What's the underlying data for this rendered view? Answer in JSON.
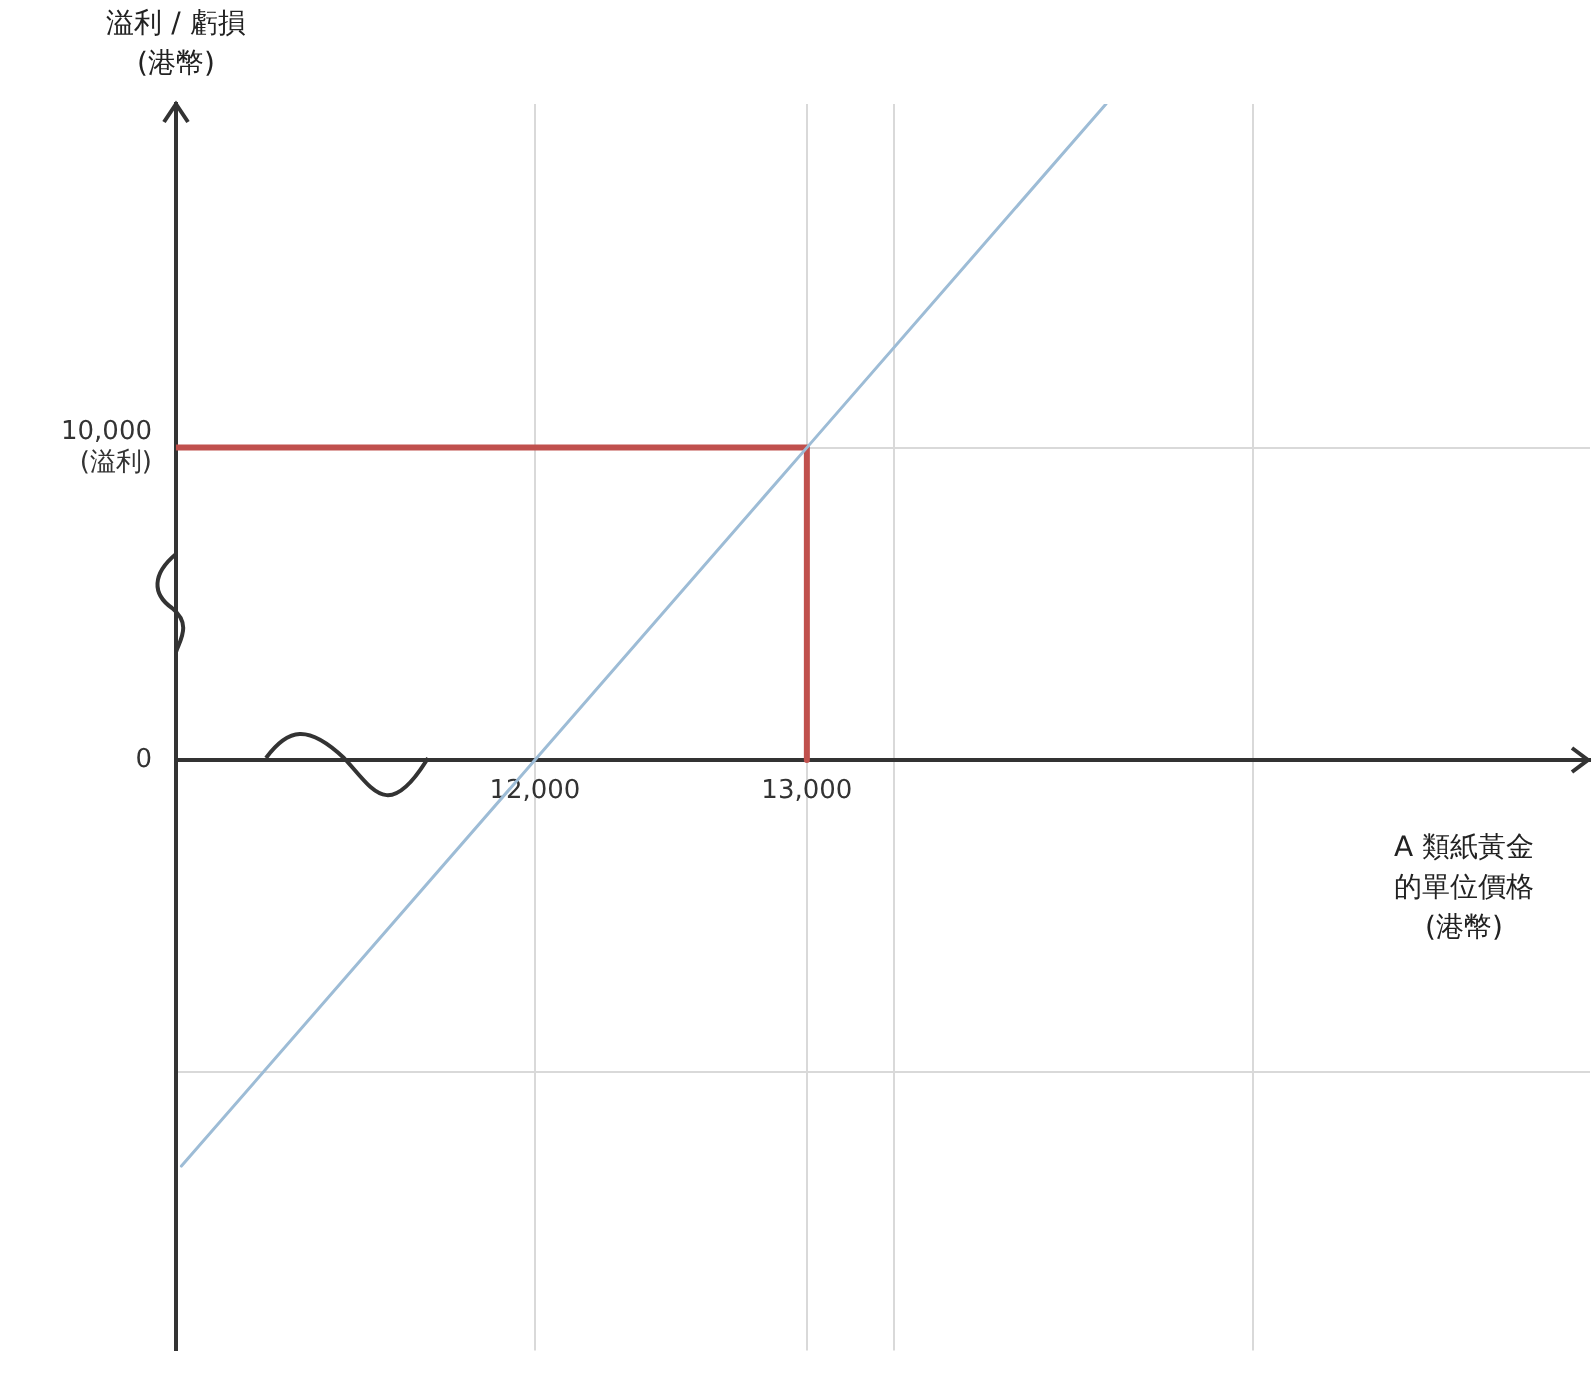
{
  "chart_data": {
    "type": "line",
    "xlabel": "A 類紙黃金的單位價格(港幣)",
    "ylabel": "溢利 / 虧損(港幣)",
    "series": [
      {
        "color": "#9dbcd6",
        "x": [
          10700,
          12000,
          13000,
          14100
        ],
        "values": [
          -13000,
          0,
          10000,
          21000
        ]
      },
      {
        "color": "#c0504d",
        "x": [
          10680,
          13000,
          13000
        ],
        "values": [
          10000,
          10000,
          0
        ]
      }
    ],
    "xlim": [
      10680,
      15880
    ],
    "xticks": [
      {
        "value": 12000,
        "label": "12,000"
      },
      {
        "value": 13000,
        "label": "13,000"
      },
      {
        "value": 13320,
        "label": null
      },
      {
        "value": 14640,
        "label": null
      }
    ],
    "ylim": [
      -18900,
      21000
    ],
    "yticks": [
      {
        "value": -10000,
        "label": null
      },
      {
        "value": 0,
        "label": "0"
      },
      {
        "value": 10000,
        "label": "10,000\n(溢利)"
      }
    ],
    "grid": true,
    "legend": false,
    "marker": "none",
    "line_style": "solid"
  }
}
